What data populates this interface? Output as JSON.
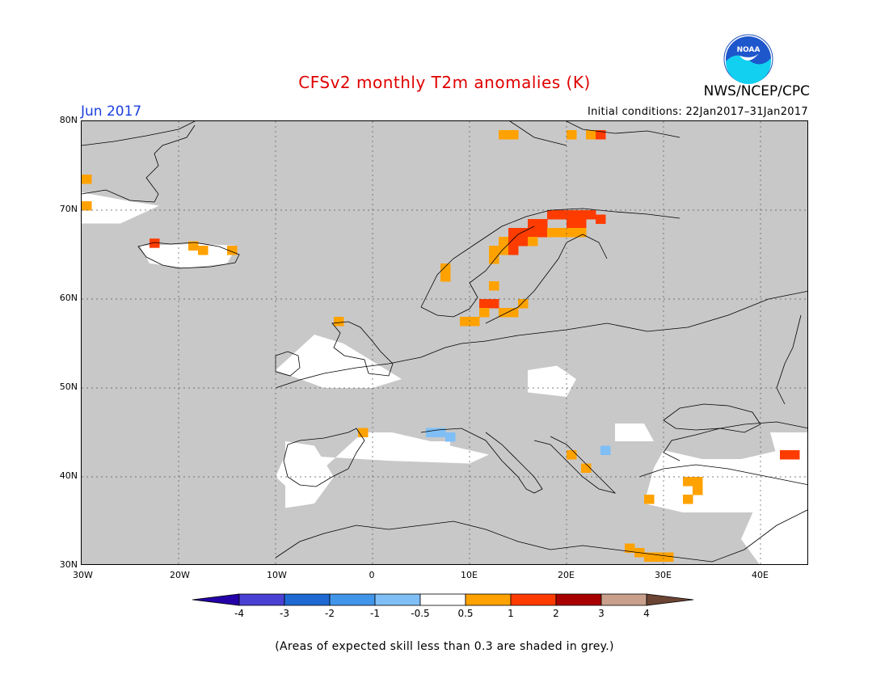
{
  "header": {
    "title": "CFSv2 monthly T2m anomalies (K)",
    "month": "Jun 2017",
    "initial_conditions": "Initial conditions: 22Jan2017–31Jan2017",
    "agency": "NWS/NCEP/CPC",
    "logo_text": "NOAA"
  },
  "map": {
    "lat_labels": [
      "80N",
      "70N",
      "60N",
      "50N",
      "40N",
      "30N"
    ],
    "lon_labels": [
      "30W",
      "20W",
      "10W",
      "0",
      "10E",
      "20E",
      "30E",
      "40E"
    ],
    "lon_range": [
      -30,
      45
    ],
    "lat_range": [
      30,
      80
    ],
    "grey_fill": "#c8c8c8"
  },
  "colorbar": {
    "labels": [
      "-4",
      "-3",
      "-2",
      "-1",
      "-0.5",
      "0.5",
      "1",
      "2",
      "3",
      "4"
    ],
    "colors": [
      "#2400a8",
      "#4a40d4",
      "#1f6ad2",
      "#4196ea",
      "#7fbff6",
      "#ffffff",
      "#ffa200",
      "#ff3c00",
      "#a80000",
      "#c8a08c",
      "#6c4434"
    ]
  },
  "footnote": "(Areas of expected skill less than 0.3 are shaded in grey.)"
}
